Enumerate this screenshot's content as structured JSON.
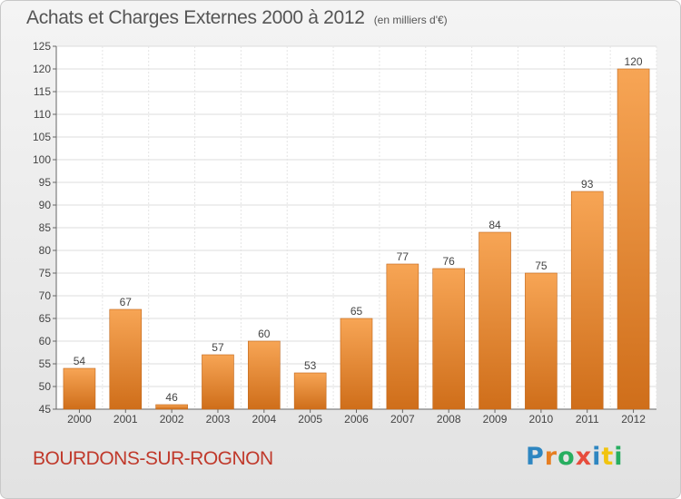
{
  "header": {
    "title": "Achats et Charges Externes 2000 à 2012",
    "unit": "(en milliers d'€)"
  },
  "footer": {
    "place": "BOURDONS-SUR-ROGNON",
    "logo": {
      "letters": [
        "P",
        "r",
        "o",
        "x",
        "i",
        "t",
        "i"
      ],
      "colors": [
        "#2e86c1",
        "#e67e22",
        "#27ae60",
        "#e74c3c",
        "#2e86c1",
        "#f1c40f",
        "#27ae60"
      ]
    }
  },
  "chart_data": {
    "type": "bar",
    "title": "Achats et Charges Externes 2000 à 2012",
    "subtitle": "(en milliers d'€)",
    "xlabel": "",
    "ylabel": "",
    "categories": [
      "2000",
      "2001",
      "2002",
      "2003",
      "2004",
      "2005",
      "2006",
      "2007",
      "2008",
      "2009",
      "2010",
      "2011",
      "2012"
    ],
    "values": [
      54,
      67,
      46,
      57,
      60,
      53,
      65,
      77,
      76,
      84,
      75,
      93,
      120
    ],
    "ylim": [
      45,
      125
    ],
    "yticks": [
      45,
      50,
      55,
      60,
      65,
      70,
      75,
      80,
      85,
      90,
      95,
      100,
      105,
      110,
      115,
      120,
      125
    ],
    "grid": true,
    "legend": "none",
    "bar_color_light": "#f7a555",
    "bar_color_dark": "#cf6e1a"
  }
}
